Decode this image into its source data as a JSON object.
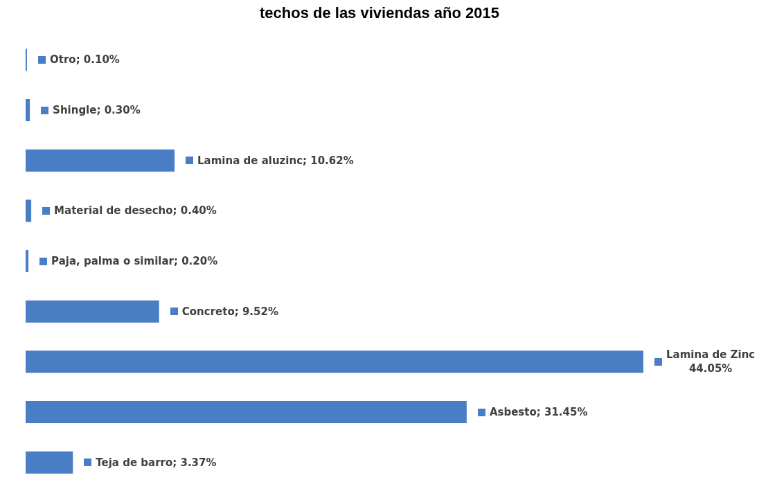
{
  "chart_data": {
    "type": "bar",
    "orientation": "horizontal",
    "title": "techos de las viviendas año 2015",
    "categories": [
      null,
      null,
      null,
      null,
      null,
      null,
      null,
      null,
      null
    ],
    "values": [
      0.1,
      0.3,
      10.62,
      0.4,
      0.2,
      9.52,
      44.05,
      31.45,
      3.37
    ],
    "value_labels": [
      "Otro; 0.10%",
      "Shingle; 0.30%",
      "Lamina de aluzinc; 10.62%",
      "Material de desecho; 0.40%",
      "Paja, palma o similar; 0.20%",
      "Concreto; 9.52%",
      "Lamina de Zinc\n44.05%",
      "Asbesto; 31.45%",
      "Teja de barro; 3.37%"
    ],
    "color": "#4a7ec4"
  }
}
